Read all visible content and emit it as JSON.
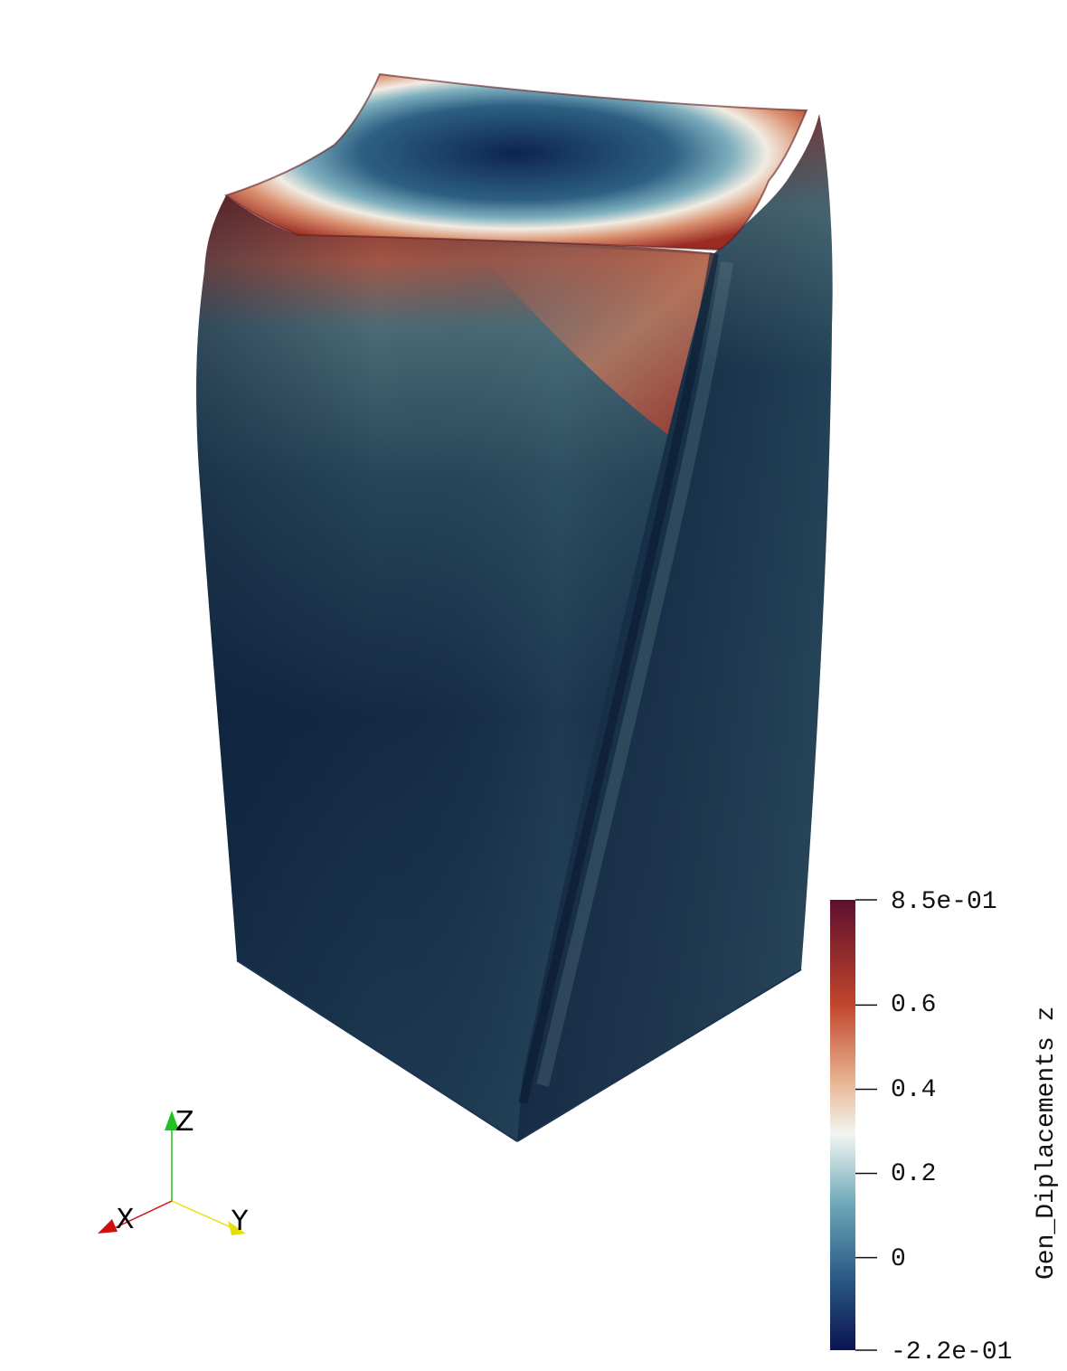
{
  "colorbar": {
    "title": "Gen_Diplacements z",
    "max_label": "8.5e-01",
    "min_label": "-2.2e-01",
    "tick_labels": [
      "0.6",
      "0.4",
      "0.2",
      "0"
    ],
    "range": [
      -0.22,
      0.85
    ],
    "ticks": [
      0.6,
      0.4,
      0.2,
      0.0
    ],
    "colormap": [
      {
        "value": -0.22,
        "color": "#0b1450"
      },
      {
        "value": -0.05,
        "color": "#2a5a86"
      },
      {
        "value": 0.12,
        "color": "#6aa6b6"
      },
      {
        "value": 0.3,
        "color": "#f2f6f2"
      },
      {
        "value": 0.42,
        "color": "#e8b28f"
      },
      {
        "value": 0.6,
        "color": "#c0442c"
      },
      {
        "value": 0.85,
        "color": "#5e0f2e"
      }
    ]
  },
  "orientation_axes": {
    "x_label": "X",
    "y_label": "Y",
    "z_label": "Z",
    "colors": {
      "x": "#d01010",
      "y": "#e6e00a",
      "z": "#1fc21f"
    }
  },
  "model": {
    "surface_colors": {
      "dark": "#0f2341",
      "mid": "#2b4d5e",
      "light": "#8eb2bb",
      "hot": "#9a2e22",
      "cold": "#0d2450"
    }
  }
}
